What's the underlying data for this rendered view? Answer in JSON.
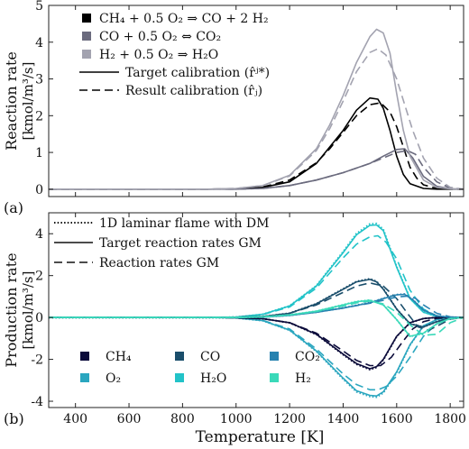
{
  "figure": {
    "x_label": "Temperature [K]"
  },
  "chart_data": [
    {
      "panel": "(a)",
      "type": "line",
      "ylabel": "Reaction rate [kmol/m³/s]",
      "ylabel_line1": "Reaction rate",
      "ylabel_line2": "[kmol/m³/s]",
      "xlim": [
        300,
        1850
      ],
      "ylim": [
        -0.2,
        5
      ],
      "x_ticks": [
        400,
        600,
        800,
        1000,
        1200,
        1400,
        1600,
        1800
      ],
      "y_ticks": [
        0,
        1,
        2,
        3,
        4,
        5
      ],
      "grid": false,
      "legend_position": "top-left",
      "legend": [
        {
          "label": "CH₄ + 0.5 O₂ ⇒ CO + 2 H₂",
          "marker": "square",
          "color": "#000000"
        },
        {
          "label": "CO + 0.5 O₂ ⇔ CO₂",
          "marker": "square",
          "color": "#6b6b7e"
        },
        {
          "label": "H₂ + 0.5 O₂ ⇒ H₂O",
          "marker": "square",
          "color": "#a3a3b0"
        },
        {
          "label": "Target calibration (r̂ʲ*)",
          "linestyle": "solid",
          "color": "#000000"
        },
        {
          "label": "Result calibration (r̂ⱼ)",
          "linestyle": "dashed",
          "color": "#000000"
        }
      ],
      "series": [
        {
          "name": "CH₄ + 0.5 O₂ ⇒ CO + 2 H₂",
          "style": "target",
          "color": "#000000",
          "x": [
            300,
            900,
            1000,
            1100,
            1200,
            1300,
            1350,
            1400,
            1450,
            1500,
            1530,
            1550,
            1575,
            1600,
            1625,
            1650,
            1700,
            1750,
            1800,
            1850
          ],
          "y": [
            0,
            0,
            0.01,
            0.05,
            0.2,
            0.7,
            1.15,
            1.6,
            2.15,
            2.48,
            2.45,
            2.2,
            1.6,
            0.9,
            0.4,
            0.15,
            0.02,
            0,
            0,
            0
          ]
        },
        {
          "name": "CH₄ + 0.5 O₂ ⇒ CO + 2 H₂",
          "style": "result",
          "color": "#000000",
          "x": [
            300,
            900,
            1000,
            1100,
            1200,
            1300,
            1350,
            1400,
            1450,
            1500,
            1540,
            1575,
            1600,
            1625,
            1650,
            1675,
            1700,
            1750,
            1800,
            1850
          ],
          "y": [
            0,
            0,
            0.01,
            0.06,
            0.25,
            0.72,
            1.1,
            1.55,
            2.0,
            2.3,
            2.35,
            2.1,
            1.7,
            1.15,
            0.6,
            0.3,
            0.12,
            0.02,
            0,
            0
          ]
        },
        {
          "name": "CO + 0.5 O₂ ⇔ CO₂",
          "style": "target",
          "color": "#6b6b7e",
          "x": [
            300,
            1000,
            1100,
            1200,
            1300,
            1400,
            1500,
            1550,
            1600,
            1630,
            1660,
            1700,
            1750,
            1800,
            1850
          ],
          "y": [
            0,
            0,
            0.02,
            0.1,
            0.25,
            0.45,
            0.7,
            0.9,
            1.08,
            1.1,
            0.85,
            0.35,
            0.08,
            0.01,
            0
          ]
        },
        {
          "name": "CO + 0.5 O₂ ⇔ CO₂",
          "style": "result",
          "color": "#6b6b7e",
          "x": [
            300,
            1000,
            1100,
            1200,
            1300,
            1400,
            1500,
            1550,
            1600,
            1640,
            1670,
            1700,
            1750,
            1800,
            1850
          ],
          "y": [
            0,
            0,
            0.02,
            0.1,
            0.25,
            0.45,
            0.7,
            0.85,
            1.0,
            1.05,
            0.95,
            0.6,
            0.2,
            0.03,
            0
          ]
        },
        {
          "name": "H₂ + 0.5 O₂ ⇒ H₂O",
          "style": "target",
          "color": "#a3a3b0",
          "x": [
            300,
            900,
            1000,
            1100,
            1200,
            1300,
            1350,
            1400,
            1450,
            1500,
            1525,
            1550,
            1575,
            1600,
            1625,
            1650,
            1700,
            1750,
            1800,
            1850
          ],
          "y": [
            0,
            0,
            0.02,
            0.1,
            0.38,
            1.1,
            1.75,
            2.55,
            3.45,
            4.15,
            4.35,
            4.25,
            3.7,
            2.6,
            1.6,
            0.9,
            0.25,
            0.05,
            0.01,
            0
          ]
        },
        {
          "name": "H₂ + 0.5 O₂ ⇒ H₂O",
          "style": "result",
          "color": "#a3a3b0",
          "x": [
            300,
            900,
            1000,
            1100,
            1200,
            1300,
            1350,
            1400,
            1450,
            1500,
            1530,
            1560,
            1600,
            1630,
            1660,
            1700,
            1750,
            1800,
            1850
          ],
          "y": [
            0,
            0,
            0.02,
            0.1,
            0.36,
            1.05,
            1.65,
            2.4,
            3.2,
            3.72,
            3.82,
            3.65,
            3.0,
            2.3,
            1.6,
            0.85,
            0.3,
            0.05,
            0
          ]
        }
      ]
    },
    {
      "panel": "(b)",
      "type": "line",
      "ylabel": "Production rate [kmol/m³/s]",
      "ylabel_line1": "Production rate",
      "ylabel_line2": "[kmol/m³/s]",
      "xlabel": "Temperature [K]",
      "xlim": [
        300,
        1850
      ],
      "ylim": [
        -4.3,
        5
      ],
      "x_ticks": [
        400,
        600,
        800,
        1000,
        1200,
        1400,
        1600,
        1800
      ],
      "y_ticks": [
        -4,
        -2,
        0,
        2,
        4
      ],
      "grid": false,
      "legend_position": "top-left",
      "line_legend": [
        {
          "label": "1D laminar flame with DM",
          "linestyle": "dotted"
        },
        {
          "label": "Target reaction rates GM",
          "linestyle": "solid"
        },
        {
          "label": "Reaction rates GM",
          "linestyle": "dashed"
        }
      ],
      "species_legend": [
        {
          "label": "CH₄",
          "color": "#0b0b3a"
        },
        {
          "label": "CO",
          "color": "#1a4e6b"
        },
        {
          "label": "CO₂",
          "color": "#2782b0"
        },
        {
          "label": "O₂",
          "color": "#2aa6bf"
        },
        {
          "label": "H₂O",
          "color": "#22c3c8"
        },
        {
          "label": "H₂",
          "color": "#3ad9b9"
        }
      ],
      "series": [
        {
          "name": "H₂O",
          "style": "target",
          "color": "#22c3c8",
          "x": [
            300,
            900,
            1000,
            1100,
            1200,
            1300,
            1400,
            1450,
            1500,
            1525,
            1550,
            1600,
            1650,
            1700,
            1750,
            1800,
            1850
          ],
          "y": [
            0,
            0,
            0.02,
            0.15,
            0.55,
            1.5,
            3.1,
            3.95,
            4.4,
            4.42,
            4.15,
            2.4,
            0.9,
            0.25,
            0.05,
            0,
            0
          ]
        },
        {
          "name": "H₂O",
          "style": "result",
          "color": "#22c3c8",
          "x": [
            300,
            900,
            1000,
            1100,
            1200,
            1300,
            1400,
            1450,
            1500,
            1530,
            1560,
            1600,
            1650,
            1700,
            1750,
            1800,
            1850
          ],
          "y": [
            0,
            0,
            0.02,
            0.14,
            0.5,
            1.4,
            2.85,
            3.5,
            3.85,
            3.9,
            3.6,
            2.8,
            1.3,
            0.4,
            0.08,
            0,
            0
          ]
        },
        {
          "name": "O₂",
          "style": "target",
          "color": "#2aa6bf",
          "x": [
            300,
            900,
            1000,
            1100,
            1200,
            1300,
            1400,
            1450,
            1500,
            1525,
            1550,
            1600,
            1650,
            1700,
            1750,
            1800,
            1850
          ],
          "y": [
            0,
            0,
            -0.02,
            -0.15,
            -0.6,
            -1.6,
            -2.9,
            -3.5,
            -3.72,
            -3.75,
            -3.55,
            -2.6,
            -1.3,
            -0.4,
            -0.1,
            0,
            0
          ]
        },
        {
          "name": "O₂",
          "style": "result",
          "color": "#2aa6bf",
          "x": [
            300,
            900,
            1000,
            1100,
            1200,
            1300,
            1400,
            1450,
            1500,
            1530,
            1560,
            1600,
            1650,
            1700,
            1750,
            1800,
            1850
          ],
          "y": [
            0,
            0,
            -0.02,
            -0.14,
            -0.55,
            -1.5,
            -2.7,
            -3.2,
            -3.45,
            -3.45,
            -3.3,
            -2.8,
            -1.9,
            -0.9,
            -0.3,
            -0.05,
            0
          ]
        },
        {
          "name": "CH₄",
          "style": "target",
          "color": "#0b0b3a",
          "x": [
            300,
            900,
            1000,
            1100,
            1200,
            1300,
            1400,
            1450,
            1500,
            1525,
            1550,
            1600,
            1650,
            1700,
            1750,
            1800,
            1850
          ],
          "y": [
            0,
            0,
            -0.01,
            -0.06,
            -0.25,
            -0.8,
            -1.75,
            -2.2,
            -2.45,
            -2.35,
            -2.0,
            -0.9,
            -0.25,
            -0.05,
            0,
            0,
            0
          ]
        },
        {
          "name": "CH₄",
          "style": "result",
          "color": "#0b0b3a",
          "x": [
            300,
            900,
            1000,
            1100,
            1200,
            1300,
            1400,
            1450,
            1500,
            1540,
            1580,
            1620,
            1660,
            1700,
            1750,
            1800,
            1850
          ],
          "y": [
            0,
            0,
            -0.01,
            -0.06,
            -0.25,
            -0.75,
            -1.6,
            -2.05,
            -2.3,
            -2.3,
            -1.9,
            -1.2,
            -0.55,
            -0.2,
            -0.04,
            0,
            0
          ]
        },
        {
          "name": "CO",
          "style": "target",
          "color": "#1a4e6b",
          "x": [
            300,
            900,
            1000,
            1100,
            1200,
            1300,
            1400,
            1450,
            1500,
            1525,
            1550,
            1600,
            1650,
            1700,
            1750,
            1800,
            1850
          ],
          "y": [
            0,
            0,
            0.01,
            0.05,
            0.2,
            0.65,
            1.35,
            1.7,
            1.82,
            1.7,
            1.35,
            0.4,
            -0.3,
            -0.45,
            -0.2,
            -0.03,
            0
          ]
        },
        {
          "name": "CO",
          "style": "result",
          "color": "#1a4e6b",
          "x": [
            300,
            900,
            1000,
            1100,
            1200,
            1300,
            1400,
            1450,
            1500,
            1550,
            1600,
            1640,
            1680,
            1720,
            1760,
            1800,
            1850
          ],
          "y": [
            0,
            0,
            0.01,
            0.05,
            0.2,
            0.6,
            1.2,
            1.5,
            1.65,
            1.5,
            0.9,
            0.2,
            -0.45,
            -0.6,
            -0.35,
            -0.08,
            0
          ]
        },
        {
          "name": "CO₂",
          "style": "target",
          "color": "#2782b0",
          "x": [
            300,
            1000,
            1100,
            1200,
            1300,
            1400,
            1500,
            1550,
            1600,
            1630,
            1660,
            1700,
            1750,
            1800,
            1850
          ],
          "y": [
            0,
            0,
            0.02,
            0.1,
            0.25,
            0.45,
            0.7,
            0.9,
            1.08,
            1.1,
            0.85,
            0.35,
            0.08,
            0.01,
            0
          ]
        },
        {
          "name": "CO₂",
          "style": "result",
          "color": "#2782b0",
          "x": [
            300,
            1000,
            1100,
            1200,
            1300,
            1400,
            1500,
            1550,
            1600,
            1640,
            1670,
            1700,
            1750,
            1800,
            1850
          ],
          "y": [
            0,
            0,
            0.02,
            0.1,
            0.25,
            0.45,
            0.68,
            0.82,
            0.98,
            1.02,
            0.92,
            0.6,
            0.2,
            0.03,
            0
          ]
        },
        {
          "name": "H₂",
          "style": "target",
          "color": "#3ad9b9",
          "x": [
            300,
            1000,
            1100,
            1200,
            1300,
            1400,
            1450,
            1500,
            1550,
            1600,
            1625,
            1650,
            1700,
            1750,
            1800,
            1850
          ],
          "y": [
            0,
            0,
            0.03,
            0.12,
            0.3,
            0.6,
            0.75,
            0.82,
            0.6,
            -0.1,
            -0.5,
            -0.9,
            -0.75,
            -0.3,
            -0.05,
            0
          ]
        },
        {
          "name": "H₂",
          "style": "result",
          "color": "#3ad9b9",
          "x": [
            300,
            1000,
            1100,
            1200,
            1300,
            1400,
            1450,
            1500,
            1550,
            1600,
            1650,
            1700,
            1750,
            1800,
            1850
          ],
          "y": [
            0,
            0,
            0.03,
            0.12,
            0.28,
            0.55,
            0.7,
            0.78,
            0.65,
            0.25,
            -0.35,
            -0.85,
            -0.8,
            -0.25,
            0
          ]
        }
      ]
    }
  ]
}
